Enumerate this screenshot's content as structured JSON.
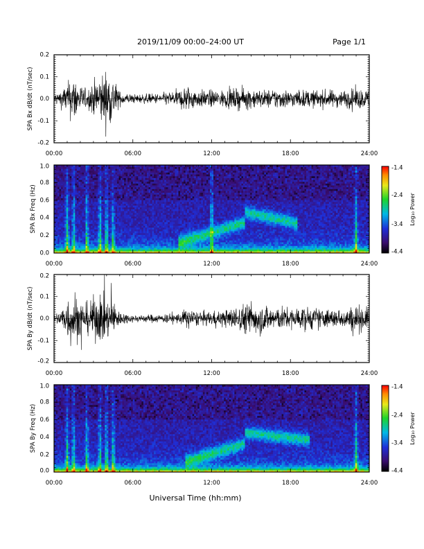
{
  "header": {
    "title": "2019/11/09  00:00–24:00 UT",
    "page": "Page 1/1"
  },
  "xlabel": "Universal Time (hh:mm)",
  "chart_data": [
    {
      "type": "line",
      "ylabel": "SPA Bx dB/dt (nT/sec)",
      "xlim": [
        0,
        24
      ],
      "ylim": [
        -0.2,
        0.2
      ],
      "x_ticks": [
        "00:00",
        "06:00",
        "12:00",
        "18:00",
        "24:00"
      ],
      "y_ticks": [
        "-0.2",
        "-0.1",
        "0.0",
        "0.1",
        "0.2"
      ],
      "activity": [
        [
          0.0,
          0.03
        ],
        [
          0.5,
          0.05
        ],
        [
          1.0,
          0.09
        ],
        [
          1.5,
          0.14
        ],
        [
          2.0,
          0.08
        ],
        [
          2.5,
          0.05
        ],
        [
          3.0,
          0.1
        ],
        [
          3.5,
          0.14
        ],
        [
          4.0,
          0.16
        ],
        [
          4.5,
          0.13
        ],
        [
          5.0,
          0.04
        ],
        [
          6.0,
          0.025
        ],
        [
          8.0,
          0.03
        ],
        [
          9.5,
          0.05
        ],
        [
          10.0,
          0.08
        ],
        [
          11.0,
          0.05
        ],
        [
          12.0,
          0.05
        ],
        [
          13.0,
          0.05
        ],
        [
          14.0,
          0.06
        ],
        [
          15.0,
          0.06
        ],
        [
          16.0,
          0.05
        ],
        [
          17.0,
          0.06
        ],
        [
          18.0,
          0.05
        ],
        [
          19.0,
          0.05
        ],
        [
          20.0,
          0.05
        ],
        [
          22.0,
          0.05
        ],
        [
          23.0,
          0.06
        ],
        [
          24.0,
          0.05
        ]
      ]
    },
    {
      "type": "heatmap",
      "ylabel": "SPA Bx Freq (Hz)",
      "xlim": [
        0,
        24
      ],
      "ylim": [
        0,
        1.0
      ],
      "x_ticks": [
        "00:00",
        "06:00",
        "12:00",
        "18:00",
        "24:00"
      ],
      "y_ticks": [
        "0.0",
        "0.2",
        "0.4",
        "0.6",
        "0.8",
        "1.0"
      ],
      "colorbar": {
        "label": "Log₁₀ Power",
        "range": [
          -4.4,
          -1.4
        ],
        "ticks": [
          "-1.4",
          "-2.4",
          "-3.4",
          "-4.4"
        ]
      },
      "band": {
        "t_start": 9.5,
        "t_end": 18.5,
        "t_peak": 14.5,
        "f_peak": 0.35,
        "f_end": 0.22
      },
      "bursts": [
        1.0,
        1.5,
        2.5,
        3.5,
        4.0,
        4.5,
        12.0,
        23.0
      ]
    },
    {
      "type": "line",
      "ylabel": "SPA By dB/dt (nT/sec)",
      "xlim": [
        0,
        24
      ],
      "ylim": [
        -0.2,
        0.2
      ],
      "x_ticks": [
        "00:00",
        "06:00",
        "12:00",
        "18:00",
        "24:00"
      ],
      "y_ticks": [
        "-0.2",
        "-0.1",
        "0.0",
        "0.1",
        "0.2"
      ],
      "activity": [
        [
          0.0,
          0.02
        ],
        [
          0.5,
          0.05
        ],
        [
          1.0,
          0.12
        ],
        [
          1.5,
          0.17
        ],
        [
          2.0,
          0.1
        ],
        [
          2.5,
          0.09
        ],
        [
          3.0,
          0.12
        ],
        [
          3.5,
          0.14
        ],
        [
          4.0,
          0.12
        ],
        [
          4.5,
          0.1
        ],
        [
          5.0,
          0.04
        ],
        [
          6.0,
          0.02
        ],
        [
          8.0,
          0.025
        ],
        [
          9.5,
          0.03
        ],
        [
          10.0,
          0.06
        ],
        [
          11.0,
          0.04
        ],
        [
          12.0,
          0.04
        ],
        [
          13.0,
          0.05
        ],
        [
          14.0,
          0.07
        ],
        [
          15.0,
          0.1
        ],
        [
          16.0,
          0.08
        ],
        [
          17.0,
          0.07
        ],
        [
          18.0,
          0.06
        ],
        [
          19.0,
          0.07
        ],
        [
          20.0,
          0.06
        ],
        [
          22.0,
          0.05
        ],
        [
          23.0,
          0.08
        ],
        [
          24.0,
          0.06
        ]
      ]
    },
    {
      "type": "heatmap",
      "ylabel": "SPA By Freq (Hz)",
      "xlim": [
        0,
        24
      ],
      "ylim": [
        0,
        1.0
      ],
      "x_ticks": [
        "00:00",
        "06:00",
        "12:00",
        "18:00",
        "24:00"
      ],
      "y_ticks": [
        "0.0",
        "0.2",
        "0.4",
        "0.6",
        "0.8",
        "1.0"
      ],
      "colorbar": {
        "label": "Log₁₀ Power",
        "range": [
          -4.4,
          -1.4
        ],
        "ticks": [
          "-1.4",
          "-2.4",
          "-3.4",
          "-4.4"
        ]
      },
      "band": {
        "t_start": 10.0,
        "t_end": 19.5,
        "t_peak": 14.5,
        "f_peak": 0.33,
        "f_end": 0.25
      },
      "bursts": [
        1.0,
        1.5,
        2.5,
        3.5,
        4.0,
        4.5,
        23.0
      ]
    }
  ]
}
